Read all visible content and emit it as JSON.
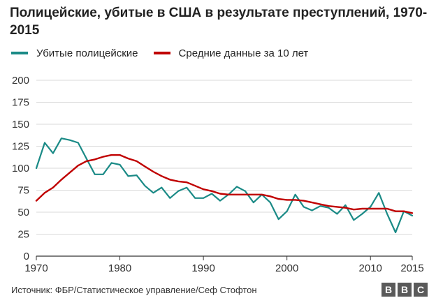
{
  "title": "Полицейские, убитые в США в результате преступлений, 1970-2015",
  "legend": {
    "series1": "Убитые полицейские",
    "series2": "Средние данные за 10 лет"
  },
  "source": "Источник: ФБР/Статистическое управление/Сеф Стофтон",
  "logo": [
    "B",
    "B",
    "C"
  ],
  "colors": {
    "series1": "#1a8a86",
    "series2": "#c00000",
    "grid": "#d9d9d9",
    "axis": "#333333"
  },
  "chart_data": {
    "type": "line",
    "title": "Полицейские, убитые в США в результате преступлений, 1970-2015",
    "xlim": [
      1970,
      2015
    ],
    "ylim": [
      0,
      200
    ],
    "x_ticks": [
      {
        "value": 1970,
        "label": "1970"
      },
      {
        "value": 1980,
        "label": "1980"
      },
      {
        "value": 1990,
        "label": "1990"
      },
      {
        "value": 2000,
        "label": "2000"
      },
      {
        "value": 2010,
        "label": "2010"
      },
      {
        "value": 2015,
        "label": "2015"
      }
    ],
    "y_ticks": [
      0,
      25,
      50,
      75,
      100,
      125,
      150,
      175,
      200
    ],
    "grid": true,
    "legend_position": "top-left",
    "x": [
      1970,
      1971,
      1972,
      1973,
      1974,
      1975,
      1976,
      1977,
      1978,
      1979,
      1980,
      1981,
      1982,
      1983,
      1984,
      1985,
      1986,
      1987,
      1988,
      1989,
      1990,
      1991,
      1992,
      1993,
      1994,
      1995,
      1996,
      1997,
      1998,
      1999,
      2000,
      2001,
      2002,
      2003,
      2004,
      2005,
      2006,
      2007,
      2008,
      2009,
      2010,
      2011,
      2012,
      2013,
      2014,
      2015
    ],
    "series": [
      {
        "name": "Убитые полицейские",
        "values": [
          100,
          129,
          117,
          134,
          132,
          129,
          111,
          93,
          93,
          106,
          104,
          91,
          92,
          80,
          72,
          78,
          66,
          74,
          78,
          66,
          66,
          71,
          63,
          70,
          79,
          74,
          61,
          70,
          61,
          42,
          51,
          70,
          56,
          52,
          57,
          55,
          48,
          58,
          41,
          48,
          56,
          72,
          48,
          27,
          51,
          46
        ]
      },
      {
        "name": "Средние данные за 10 лет",
        "values": [
          63,
          72,
          78,
          87,
          95,
          103,
          108,
          110,
          113,
          115,
          115,
          111,
          108,
          102,
          96,
          91,
          87,
          85,
          84,
          80,
          76,
          74,
          71,
          70,
          70,
          70,
          70,
          70,
          68,
          65,
          64,
          64,
          63,
          61,
          59,
          57,
          56,
          55,
          53,
          54,
          54,
          54,
          54,
          51,
          51,
          49
        ]
      }
    ]
  }
}
